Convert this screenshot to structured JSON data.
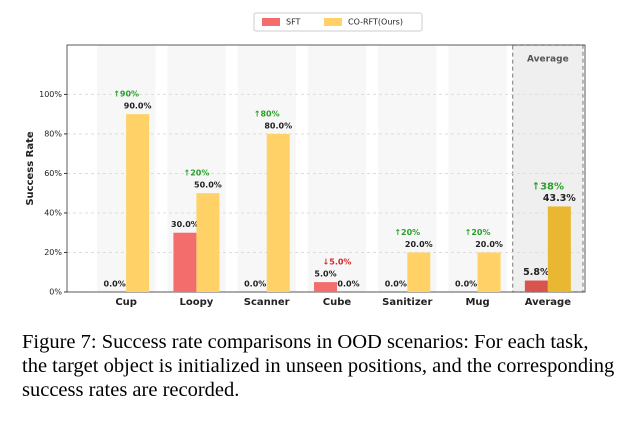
{
  "chart_data": {
    "type": "bar",
    "categories": [
      "Cup",
      "Loopy",
      "Scanner",
      "Cube",
      "Sanitizer",
      "Mug",
      "Average"
    ],
    "ylabel": "Success Rate",
    "ylim": [
      0,
      125
    ],
    "yticks": [
      {
        "value": 0,
        "label": "0%"
      },
      {
        "value": 20,
        "label": "20%"
      },
      {
        "value": 40,
        "label": "40%"
      },
      {
        "value": 60,
        "label": "60%"
      },
      {
        "value": 80,
        "label": "80%"
      },
      {
        "value": 100,
        "label": "100%"
      }
    ],
    "grid": true,
    "highlight_label": "Average",
    "series": [
      {
        "name": "SFT",
        "color": "#f46d6d",
        "average_color": "#d9534f",
        "values": [
          0,
          30,
          0,
          5,
          0,
          0,
          5.8
        ],
        "value_labels": [
          "0.0%",
          "30.0%",
          "0.0%",
          "5.0%",
          "0.0%",
          "0.0%",
          "5.8%"
        ]
      },
      {
        "name": "CO-RFT(Ours)",
        "color": "#ffd166",
        "average_color": "#e9b731",
        "values": [
          90,
          50,
          80,
          0,
          20,
          20,
          43.3
        ],
        "value_labels": [
          "90.0%",
          "50.0%",
          "80.0%",
          "0.0%",
          "20.0%",
          "20.0%",
          "43.3%"
        ]
      }
    ],
    "annotations": [
      {
        "text": "↑90%",
        "color": "#2ca02c"
      },
      {
        "text": "↑20%",
        "color": "#2ca02c"
      },
      {
        "text": "↑80%",
        "color": "#2ca02c"
      },
      {
        "text": "↓5.0%",
        "color": "#d62728"
      },
      {
        "text": "↑20%",
        "color": "#2ca02c"
      },
      {
        "text": "↑20%",
        "color": "#2ca02c"
      },
      {
        "text": "↑38%",
        "color": "#2ca02c"
      }
    ]
  },
  "caption": "Figure 7: Success rate comparisons in OOD scenarios: For each task, the target object is initialized in unseen positions, and the corresponding success rates are recorded."
}
